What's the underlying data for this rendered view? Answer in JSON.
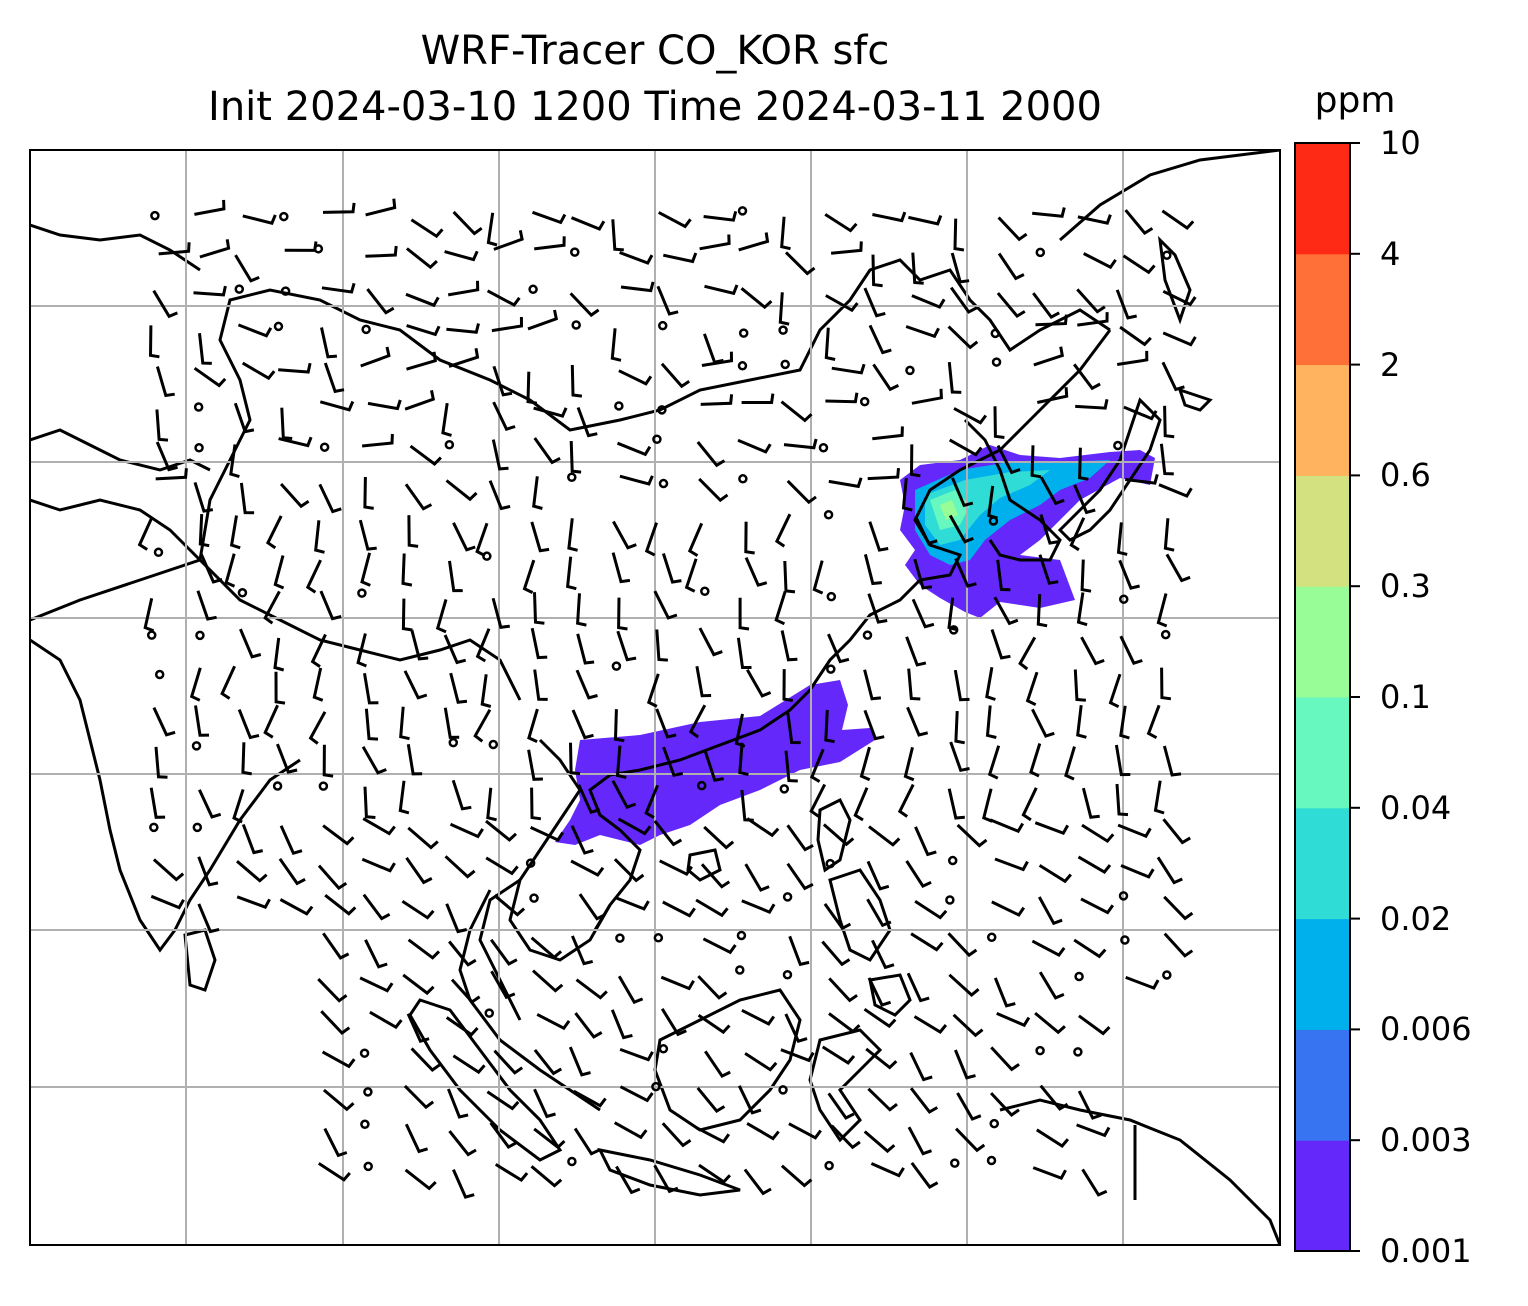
{
  "title": {
    "line1": "WRF-Tracer CO_KOR sfc",
    "line2": "Init 2024-03-10 1200 Time 2024-03-11 2000"
  },
  "colorbar": {
    "unit": "ppm",
    "levels": [
      "0.001",
      "0.003",
      "0.006",
      "0.02",
      "0.04",
      "0.1",
      "0.3",
      "0.6",
      "2",
      "4",
      "10"
    ],
    "colors": [
      "#6428fb",
      "#3674f1",
      "#00b0ec",
      "#2fdcd6",
      "#66f8be",
      "#98fd96",
      "#d3e180",
      "#ffb35f",
      "#ff7039",
      "#ff2a15"
    ]
  },
  "map": {
    "background": "#ffffff",
    "gridline_color": "#b0b0b0",
    "coastline_color": "#000000",
    "wind_barbs": "black wind barbs with calm-circle markers",
    "plumes": [
      {
        "region": "Korea / Yellow Sea",
        "max_level": "0.1"
      },
      {
        "region": "Southern China / northern Indochina",
        "max_level": "0.003"
      }
    ]
  }
}
